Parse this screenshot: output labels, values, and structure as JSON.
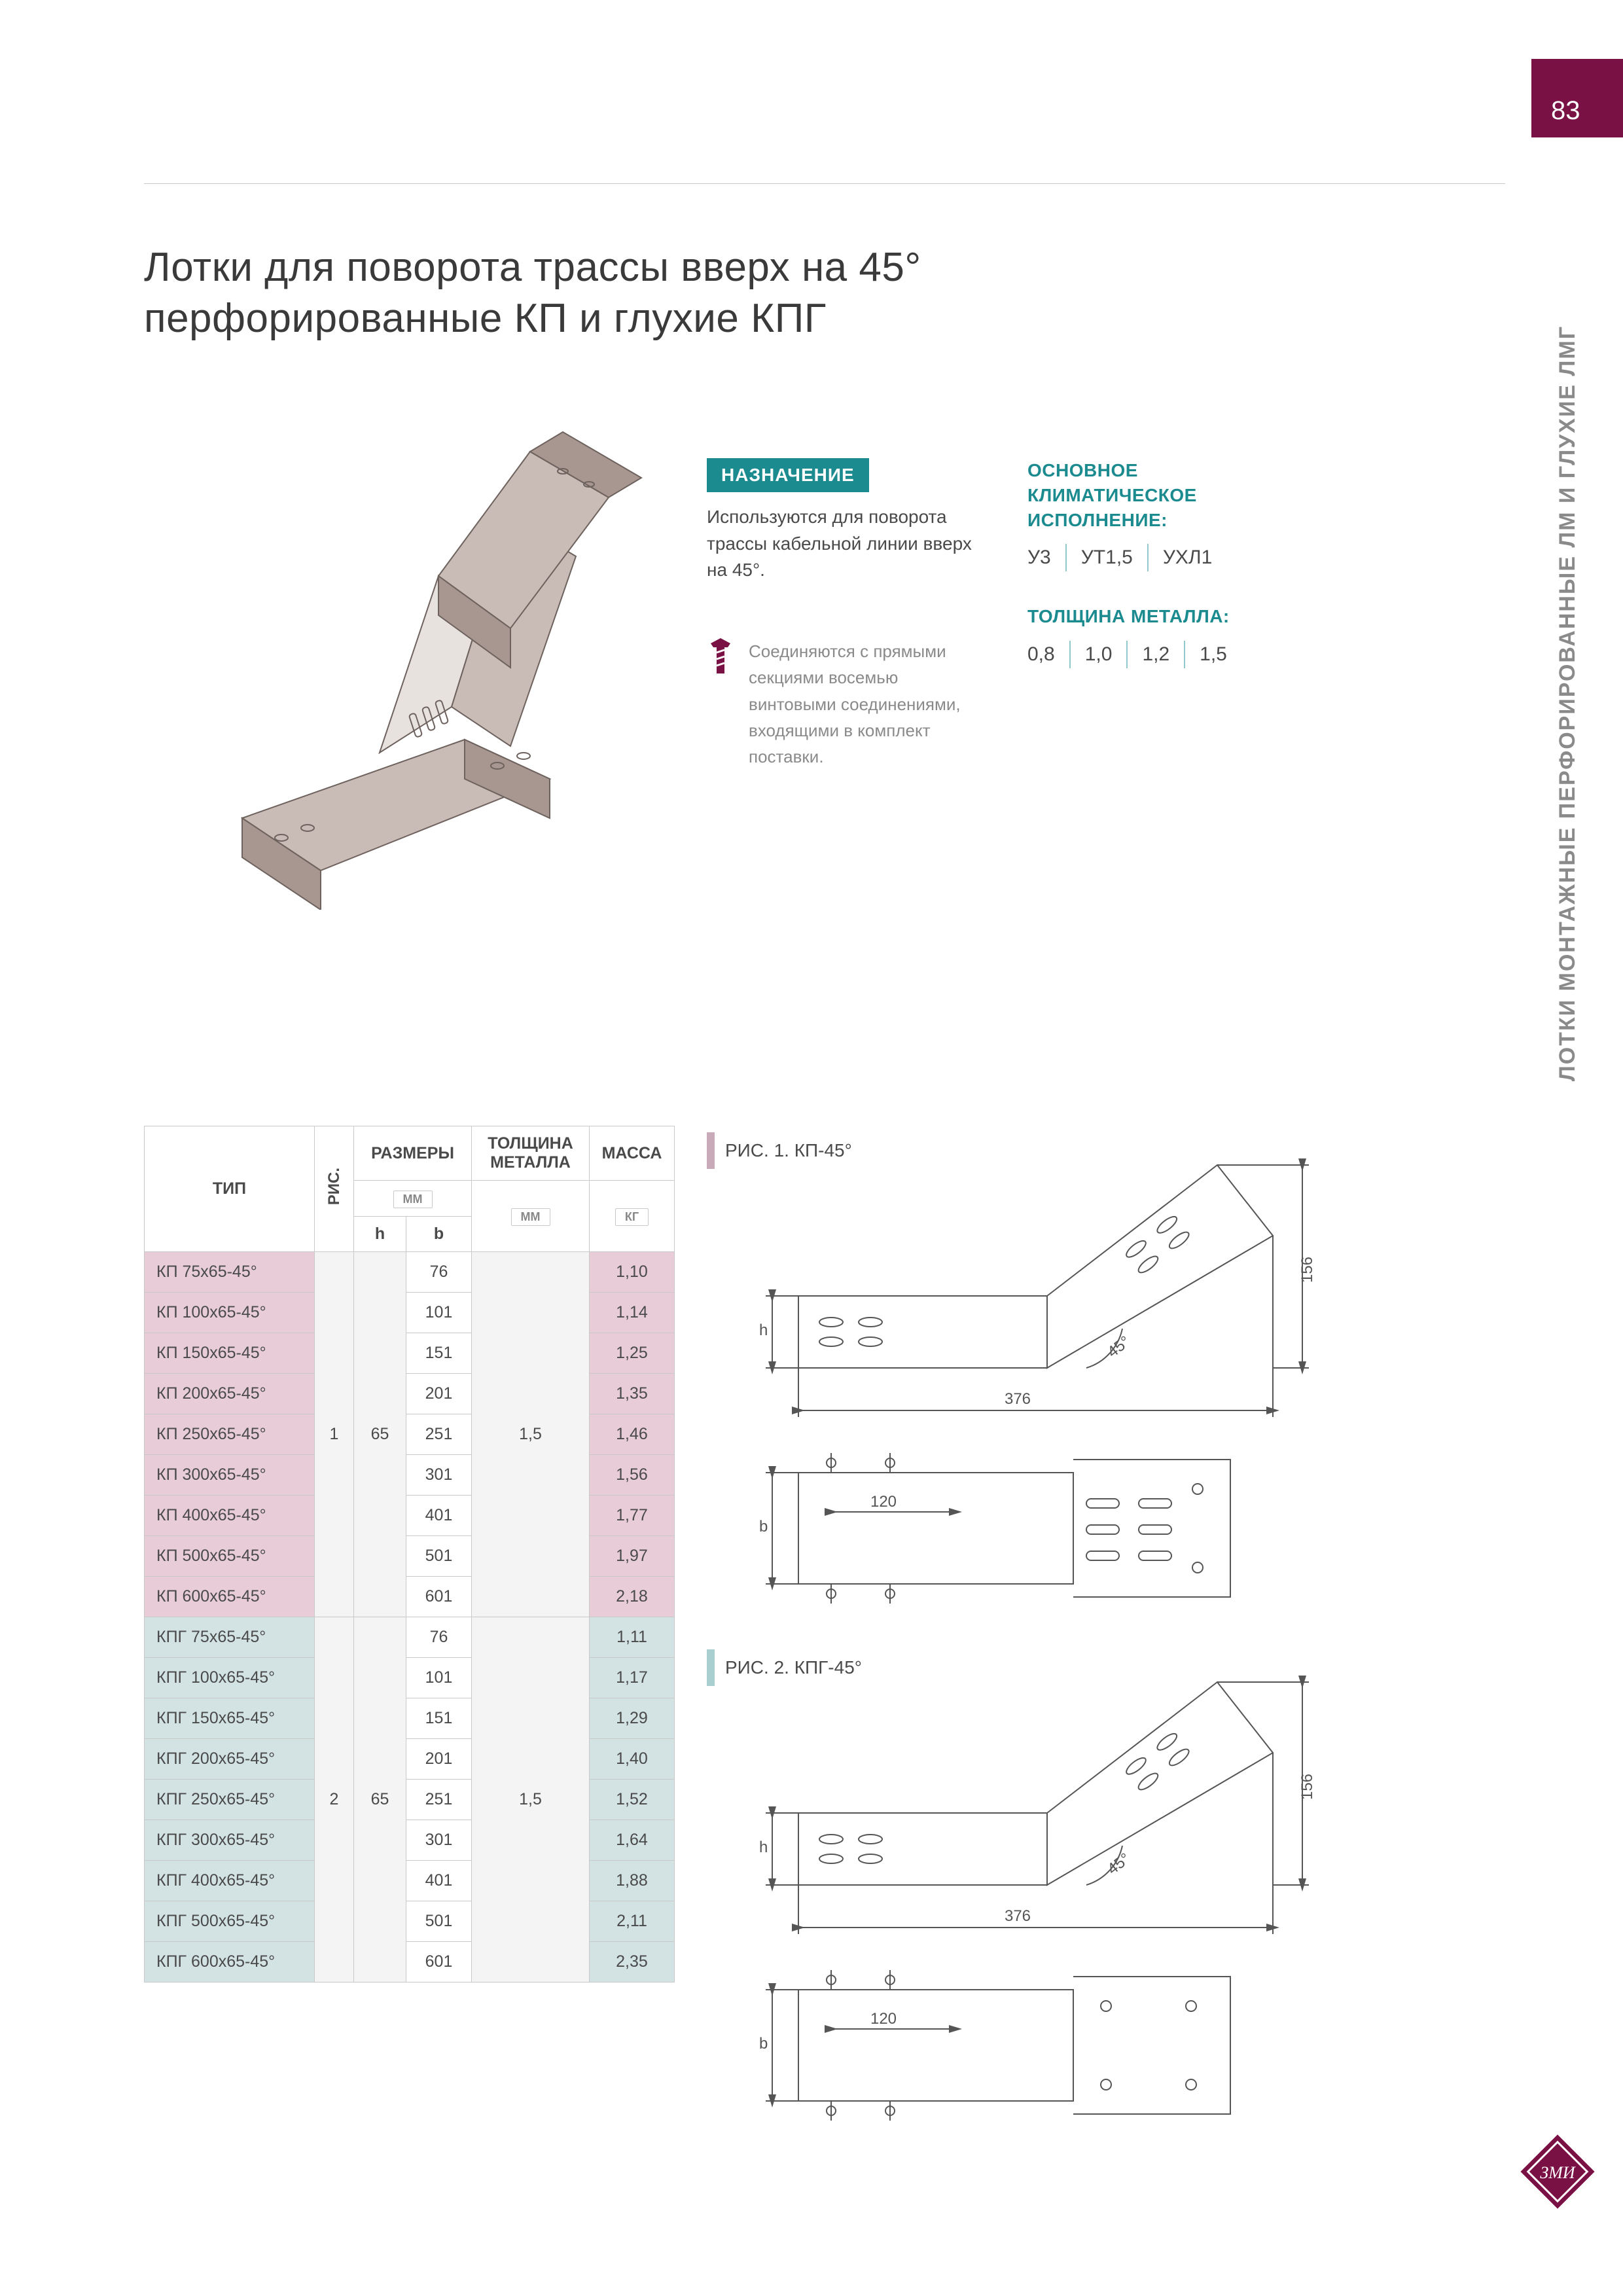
{
  "page_number": "83",
  "sidebar_title": "ЛОТКИ МОНТАЖНЫЕ ПЕРФОРИРОВАННЫЕ ЛМ И ГЛУХИЕ ЛМГ",
  "title_line1": "Лотки для поворота трассы вверх на 45°",
  "title_line2": "перфорированные КП и глухие КПГ",
  "purpose": {
    "badge": "НАЗНАЧЕНИЕ",
    "text": "Используются для поворота трассы кабельной линии вверх на 45°."
  },
  "screw_note": "Соединяются с прямыми секциями восемью винтовыми соединениями, входящими в комплект поставки.",
  "climate": {
    "heading": "ОСНОВНОЕ КЛИМАТИЧЕСКОЕ ИСПОЛНЕНИЕ:",
    "values": [
      "У3",
      "УТ1,5",
      "УХЛ1"
    ]
  },
  "thickness": {
    "heading": "ТОЛЩИНА МЕТАЛЛА:",
    "values": [
      "0,8",
      "1,0",
      "1,2",
      "1,5"
    ]
  },
  "table": {
    "headers": {
      "type": "ТИП",
      "fig": "РИС.",
      "dims": "РАЗМЕРЫ",
      "thick": "ТОЛЩИНА МЕТАЛЛА",
      "mass": "МАССА",
      "h": "h",
      "b": "b"
    },
    "units": {
      "mm": "ММ",
      "kg": "КГ"
    },
    "group1": {
      "fig": "1",
      "h": "65",
      "thick": "1,5",
      "rows": [
        {
          "type": "КП 75х65-45°",
          "b": "76",
          "mass": "1,10"
        },
        {
          "type": "КП 100х65-45°",
          "b": "101",
          "mass": "1,14"
        },
        {
          "type": "КП 150х65-45°",
          "b": "151",
          "mass": "1,25"
        },
        {
          "type": "КП 200х65-45°",
          "b": "201",
          "mass": "1,35"
        },
        {
          "type": "КП 250х65-45°",
          "b": "251",
          "mass": "1,46"
        },
        {
          "type": "КП 300х65-45°",
          "b": "301",
          "mass": "1,56"
        },
        {
          "type": "КП 400х65-45°",
          "b": "401",
          "mass": "1,77"
        },
        {
          "type": "КП 500х65-45°",
          "b": "501",
          "mass": "1,97"
        },
        {
          "type": "КП 600х65-45°",
          "b": "601",
          "mass": "2,18"
        }
      ]
    },
    "group2": {
      "fig": "2",
      "h": "65",
      "thick": "1,5",
      "rows": [
        {
          "type": "КПГ 75х65-45°",
          "b": "76",
          "mass": "1,11"
        },
        {
          "type": "КПГ 100х65-45°",
          "b": "101",
          "mass": "1,17"
        },
        {
          "type": "КПГ 150х65-45°",
          "b": "151",
          "mass": "1,29"
        },
        {
          "type": "КПГ 200х65-45°",
          "b": "201",
          "mass": "1,40"
        },
        {
          "type": "КПГ 250х65-45°",
          "b": "251",
          "mass": "1,52"
        },
        {
          "type": "КПГ 300х65-45°",
          "b": "301",
          "mass": "1,64"
        },
        {
          "type": "КПГ 400х65-45°",
          "b": "401",
          "mass": "1,88"
        },
        {
          "type": "КПГ 500х65-45°",
          "b": "501",
          "mass": "2,11"
        },
        {
          "type": "КПГ 600х65-45°",
          "b": "601",
          "mass": "2,35"
        }
      ]
    }
  },
  "figures": {
    "fig1_label": "РИС. 1. КП-45°",
    "fig2_label": "РИС. 2. КПГ-45°",
    "dims": {
      "length": "376",
      "height": "156",
      "angle": "45°",
      "inner": "120",
      "h": "h",
      "b": "b"
    }
  },
  "colors": {
    "brand_maroon": "#7a1145",
    "teal": "#1c8b8f",
    "kp_row": "#e8cdd9",
    "kpg_row": "#d3e3e4",
    "border": "#c9c9c9",
    "text": "#4a4a4a",
    "muted": "#8a8a8a"
  },
  "illustration": {
    "body_fill": "#c9bbb6",
    "body_shadow": "#a89690",
    "edge": "#6d625d",
    "inner_light": "#e8e2df"
  }
}
